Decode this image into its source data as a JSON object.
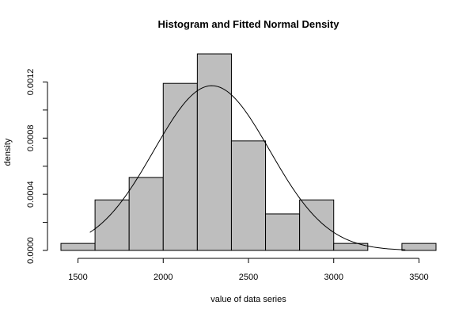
{
  "chart_data": {
    "type": "bar",
    "title": "Histogram and Fitted Normal Density",
    "xlabel": "value of data series",
    "ylabel": "density",
    "xlim": [
      1400,
      3600
    ],
    "ylim": [
      0,
      0.0014
    ],
    "x_ticks": [
      1500,
      2000,
      2500,
      3000,
      3500
    ],
    "y_ticks": [
      0,
      0.0002,
      0.0004,
      0.0006,
      0.0008,
      0.001,
      0.0012
    ],
    "y_tick_labels": [
      "0.0000",
      "",
      "0.0004",
      "",
      "0.0008",
      "",
      "0.0012"
    ],
    "bins": [
      {
        "start": 1400,
        "end": 1600,
        "density": 5e-05
      },
      {
        "start": 1600,
        "end": 1800,
        "density": 0.00036
      },
      {
        "start": 1800,
        "end": 2000,
        "density": 0.00052
      },
      {
        "start": 2000,
        "end": 2200,
        "density": 0.00119
      },
      {
        "start": 2200,
        "end": 2400,
        "density": 0.0014
      },
      {
        "start": 2400,
        "end": 2600,
        "density": 0.00078
      },
      {
        "start": 2600,
        "end": 2800,
        "density": 0.00026
      },
      {
        "start": 2800,
        "end": 3000,
        "density": 0.00036
      },
      {
        "start": 3000,
        "end": 3200,
        "density": 5e-05
      },
      {
        "start": 3200,
        "end": 3400,
        "density": 0
      },
      {
        "start": 3400,
        "end": 3600,
        "density": 5e-05
      }
    ],
    "fitted_normal": {
      "mean": 2285,
      "sd": 340,
      "x_range": [
        1570,
        3420
      ]
    },
    "grid": false,
    "legend": "none"
  }
}
